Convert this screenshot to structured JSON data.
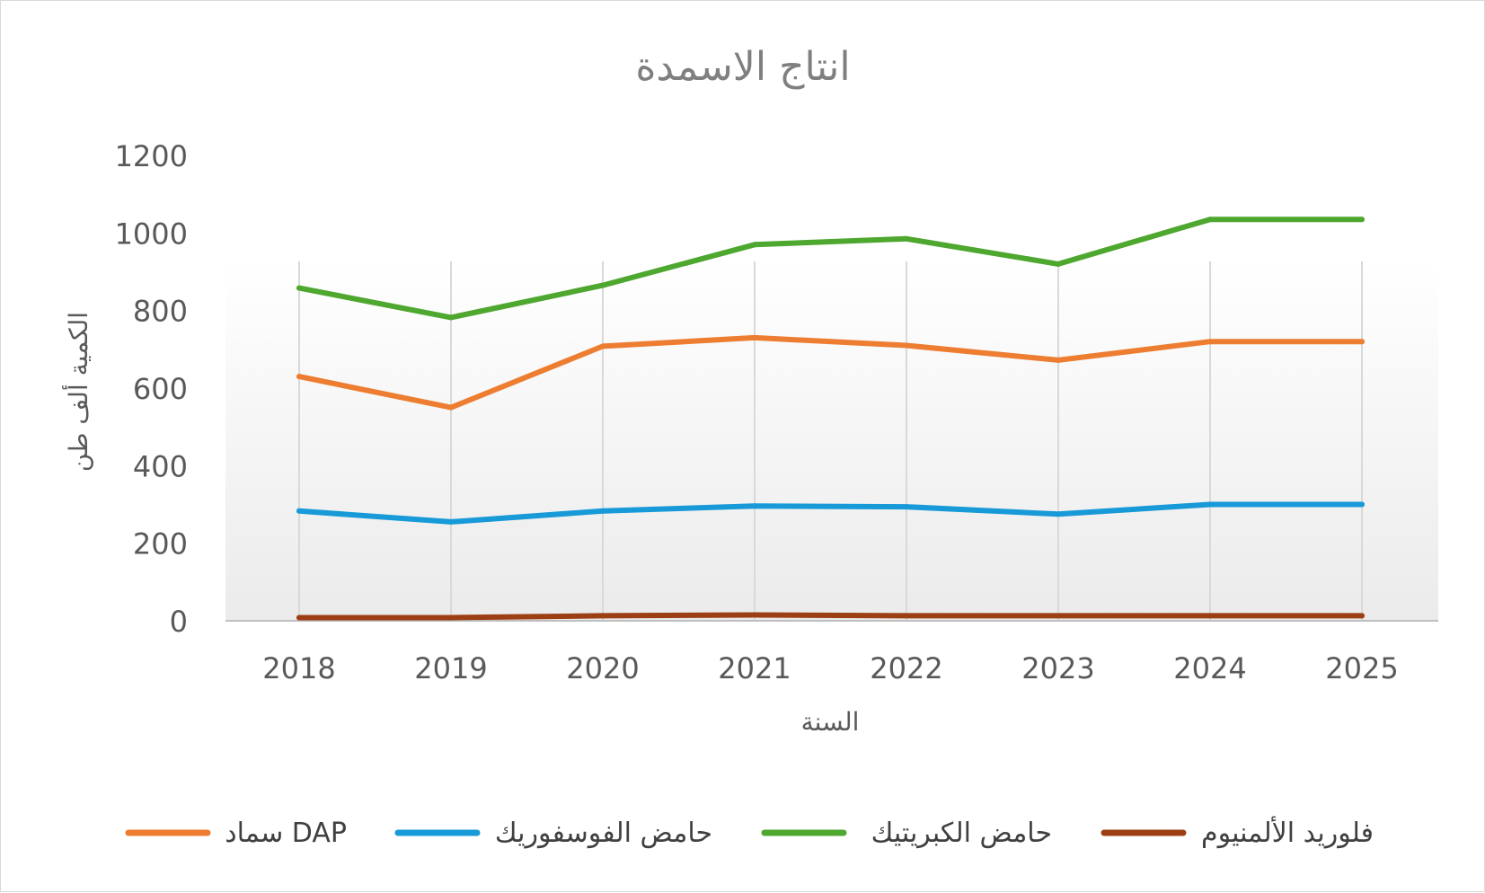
{
  "chart_data": {
    "type": "line",
    "title": "انتاج الاسمدة",
    "xlabel": "السنة",
    "ylabel": "الكمية ألف طن",
    "categories": [
      "2018",
      "2019",
      "2020",
      "2021",
      "2022",
      "2023",
      "2024",
      "2025"
    ],
    "ylim": [
      0,
      1200
    ],
    "yticks": [
      0,
      200,
      400,
      600,
      800,
      1000,
      1200
    ],
    "grid": "vertical",
    "legend_position": "bottom",
    "series": [
      {
        "name": "سماد DAP",
        "color": "#ed7d31",
        "values": [
          630,
          550,
          708,
          730,
          710,
          672,
          720,
          720
        ]
      },
      {
        "name": "حامض الفوسفوريك",
        "color": "#179ad7",
        "values": [
          283,
          255,
          283,
          296,
          294,
          275,
          300,
          300
        ]
      },
      {
        "name": "حامض الكبريتيك",
        "color": "#4ea72e",
        "values": [
          858,
          782,
          865,
          970,
          985,
          920,
          1035,
          1035
        ]
      },
      {
        "name": "فلوريد الألمنيوم",
        "color": "#9c3f14",
        "values": [
          8,
          8,
          13,
          15,
          13,
          13,
          13,
          13
        ]
      }
    ]
  }
}
